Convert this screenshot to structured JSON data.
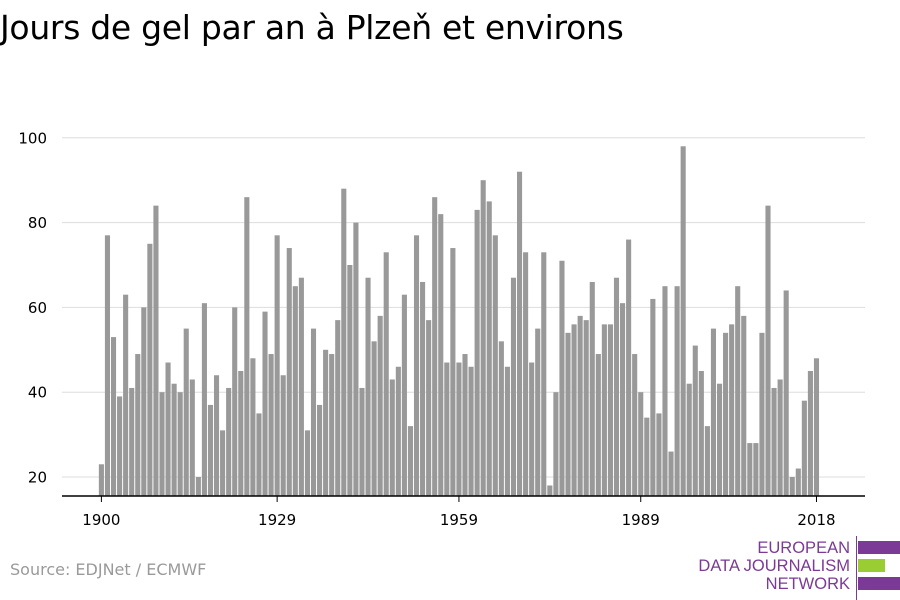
{
  "title": "Jours de gel par an à Plzeň et environs",
  "source": "Source: EDJNet / ECMWF",
  "logo": {
    "lines": [
      "EUROPEAN",
      "DATA JOURNALISM",
      "NETWORK"
    ],
    "colors": [
      "#7b3a96",
      "#9acd32",
      "#7b3a96"
    ]
  },
  "colors": {
    "bar": "#999999",
    "grid": "#dddddd",
    "axis": "#000000",
    "tick_text": "#000000"
  },
  "chart_data": {
    "type": "bar",
    "title": "Jours de gel par an à Plzeň et environs",
    "xlabel": "",
    "ylabel": "",
    "x_start": 1900,
    "x_end": 2020,
    "x_ticks": [
      1900,
      1929,
      1959,
      1989,
      2018
    ],
    "y_ticks": [
      20,
      40,
      60,
      80,
      100
    ],
    "ylim": [
      15,
      100
    ],
    "grid": true,
    "values": [
      23,
      77,
      53,
      39,
      63,
      41,
      49,
      60,
      75,
      84,
      40,
      47,
      42,
      40,
      55,
      43,
      20,
      61,
      37,
      44,
      31,
      41,
      60,
      45,
      86,
      48,
      35,
      59,
      49,
      77,
      44,
      74,
      65,
      67,
      31,
      55,
      37,
      50,
      49,
      57,
      88,
      70,
      80,
      41,
      67,
      52,
      58,
      73,
      43,
      46,
      63,
      32,
      77,
      66,
      57,
      86,
      82,
      47,
      74,
      47,
      49,
      46,
      83,
      90,
      85,
      77,
      52,
      46,
      67,
      92,
      73,
      47,
      55,
      73,
      18,
      40,
      71,
      54,
      56,
      58,
      57,
      66,
      49,
      56,
      56,
      67,
      61,
      76,
      49,
      40,
      34,
      62,
      35,
      65,
      26,
      65,
      98,
      42,
      51,
      45,
      32,
      55,
      42,
      54,
      56,
      65,
      58,
      28,
      28,
      54,
      84,
      41,
      43,
      64,
      20,
      22,
      38,
      45,
      48
    ]
  }
}
